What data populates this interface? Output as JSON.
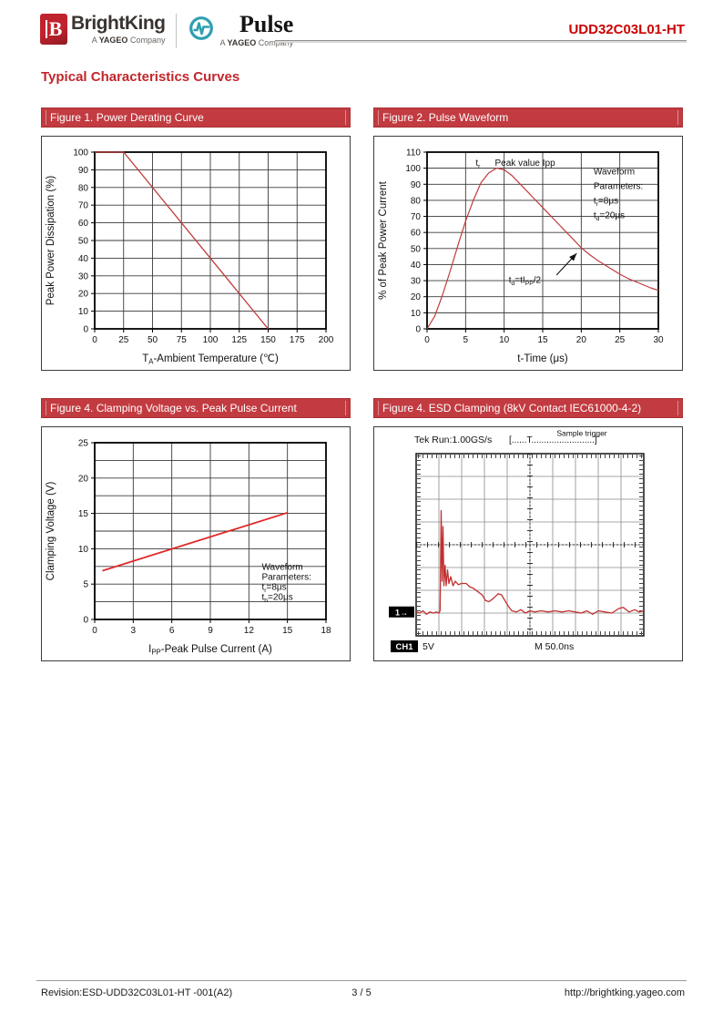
{
  "header": {
    "brightking": {
      "name": "BrightKing",
      "logo_letter": "B",
      "tagline": {
        "prefix": "A",
        "bold": "YAGEO",
        "suffix": "Company"
      }
    },
    "pulse": {
      "name": "Pulse",
      "tagline": {
        "prefix": "A",
        "bold": "YAGEO",
        "suffix": "Company"
      }
    },
    "part_number": "UDD32C03L01-HT"
  },
  "title": "Typical Characteristics Curves",
  "footer": {
    "revision": "Revision:ESD-UDD32C03L01-HT -001(A2)",
    "page_indicator": "3 / 5",
    "url": "http://brightking.yageo.com"
  },
  "colors": {
    "accent_red": "#c2262c",
    "figure_header_red": "#c23b41",
    "curve_red": "#c03a3a",
    "bright_curve_red": "#e02727",
    "part_number_red": "#cc0000",
    "pulse_teal": "#2d9fb0",
    "logo_red": "#b2212b"
  },
  "chart_data": [
    {
      "id": "figure-1",
      "type": "line",
      "title": "Figure 1. Power Derating Curve",
      "xlabel": "T~A~-Ambient Temperature (℃)",
      "ylabel": "Peak Power Dissipation (%)",
      "xlim": [
        0,
        200
      ],
      "ylim": [
        0,
        100
      ],
      "xticks": [
        0,
        25,
        50,
        75,
        100,
        125,
        150,
        175,
        200
      ],
      "yticks": [
        0,
        10,
        20,
        30,
        40,
        50,
        60,
        70,
        80,
        90,
        100
      ],
      "grid": true,
      "series": [
        {
          "name": "power-derating",
          "color": "#c03a3a",
          "width": 1.3,
          "points": [
            [
              0,
              100
            ],
            [
              25,
              100
            ],
            [
              150,
              0
            ]
          ]
        }
      ],
      "annotations": [],
      "arrows": []
    },
    {
      "id": "figure-2",
      "type": "line",
      "title": "Figure 2. Pulse Waveform",
      "xlabel": "t-Time (μs)",
      "ylabel": "% of Peak Power Current",
      "xlim": [
        0,
        30
      ],
      "ylim": [
        0,
        110
      ],
      "xticks": [
        0,
        5,
        10,
        15,
        20,
        25,
        30
      ],
      "yticks": [
        0,
        10,
        20,
        30,
        40,
        50,
        60,
        70,
        80,
        90,
        100,
        110
      ],
      "grid": true,
      "series": [
        {
          "name": "pulse-waveform",
          "color": "#c03a3a",
          "width": 1.2,
          "points": [
            [
              0,
              0
            ],
            [
              1,
              8
            ],
            [
              2,
              21
            ],
            [
              3,
              36
            ],
            [
              4,
              52
            ],
            [
              5,
              67
            ],
            [
              6,
              80
            ],
            [
              7,
              91
            ],
            [
              8,
              97
            ],
            [
              9,
              100
            ],
            [
              10,
              99
            ],
            [
              11,
              95.5
            ],
            [
              12,
              90.5
            ],
            [
              13,
              85.5
            ],
            [
              14,
              80.5
            ],
            [
              15,
              75.5
            ],
            [
              16,
              70.5
            ],
            [
              17,
              65.5
            ],
            [
              18,
              60.5
            ],
            [
              19,
              55.5
            ],
            [
              20,
              50.5
            ],
            [
              21,
              46.5
            ],
            [
              22,
              43
            ],
            [
              23,
              40
            ],
            [
              24,
              37
            ],
            [
              25,
              34
            ],
            [
              26,
              31.5
            ],
            [
              27,
              29.5
            ],
            [
              28,
              27.5
            ],
            [
              29,
              25.5
            ],
            [
              30,
              24
            ]
          ]
        }
      ],
      "annotations": [
        {
          "x": 6.6,
          "y": 101.5,
          "text": "t~r~",
          "anchor": "middle"
        },
        {
          "x": 8.8,
          "y": 101.5,
          "text": "Peak value Ipp",
          "anchor": "start"
        },
        {
          "x": 21.6,
          "y": 96,
          "text": "Waveform",
          "anchor": "start"
        },
        {
          "x": 21.6,
          "y": 87,
          "text": "Parameters:",
          "anchor": "start"
        },
        {
          "x": 21.6,
          "y": 78,
          "text": "t~r~=8μs",
          "anchor": "start"
        },
        {
          "x": 21.6,
          "y": 69,
          "text": "t~d~=20μs",
          "anchor": "start"
        },
        {
          "x": 10.6,
          "y": 28.5,
          "text": "t~d~=tI~PP~/2",
          "anchor": "start"
        }
      ],
      "arrows": [
        {
          "x1": 16.8,
          "y1": 33.5,
          "x2": 19.4,
          "y2": 47
        }
      ]
    },
    {
      "id": "figure-3",
      "type": "line",
      "title": "Figure 4. Clamping Voltage vs. Peak Pulse Current",
      "xlabel": "I~PP~-Peak Pulse Current (A)",
      "ylabel": "Clamping Voltage (V)",
      "xlim": [
        0,
        18
      ],
      "ylim": [
        0,
        25
      ],
      "xticks": [
        0,
        3,
        6,
        9,
        12,
        15,
        18
      ],
      "yticks": [
        0,
        5,
        10,
        15,
        20,
        25
      ],
      "ygrid": [
        0,
        2.5,
        5,
        7.5,
        10,
        12.5,
        15,
        17.5,
        20,
        22.5,
        25
      ],
      "grid": true,
      "series": [
        {
          "name": "clamping-voltage",
          "color": "#e02727",
          "width": 1.8,
          "points": [
            [
              0.6,
              6.9
            ],
            [
              15,
              15.1
            ]
          ]
        }
      ],
      "annotations": [
        {
          "x": 13,
          "y": 7.0,
          "text": "Waveform",
          "anchor": "start"
        },
        {
          "x": 13,
          "y": 5.6,
          "text": "Parameters:",
          "anchor": "start"
        },
        {
          "x": 13,
          "y": 4.2,
          "text": "t~r~=8μs",
          "anchor": "start"
        },
        {
          "x": 13,
          "y": 2.8,
          "text": "t~b~=20μs",
          "anchor": "start"
        }
      ],
      "arrows": []
    },
    {
      "id": "figure-4",
      "type": "scope",
      "title": "Figure 4. ESD Clamping (8kV Contact IEC61000-4-2)",
      "run_label": "Tek Run:1.00GS/s",
      "trigger_bar": "[......T.........................]",
      "trigger_label": "Sample trigger",
      "marker_label": "1→",
      "channel_label": "CH1",
      "channel_scale": "5V",
      "timebase": "M 50.0ns",
      "divisions_x": 10,
      "divisions_y": 8,
      "baseline_div": 1.05,
      "trace_color": "#c13030",
      "trace_points": [
        [
          0,
          1.05
        ],
        [
          0.15,
          1.0
        ],
        [
          0.3,
          1.1
        ],
        [
          0.45,
          0.95
        ],
        [
          0.6,
          1.05
        ],
        [
          0.75,
          1.0
        ],
        [
          0.9,
          1.05
        ],
        [
          1.0,
          1.0
        ],
        [
          1.05,
          1.1
        ],
        [
          1.1,
          5.5
        ],
        [
          1.14,
          2.4
        ],
        [
          1.18,
          4.8
        ],
        [
          1.22,
          2.2
        ],
        [
          1.27,
          3.1
        ],
        [
          1.32,
          2.2
        ],
        [
          1.38,
          2.9
        ],
        [
          1.44,
          2.3
        ],
        [
          1.52,
          2.6
        ],
        [
          1.62,
          2.2
        ],
        [
          1.72,
          2.4
        ],
        [
          1.85,
          2.25
        ],
        [
          2.0,
          2.3
        ],
        [
          2.2,
          2.3
        ],
        [
          2.35,
          2.15
        ],
        [
          2.5,
          2.1
        ],
        [
          2.7,
          1.95
        ],
        [
          2.9,
          1.8
        ],
        [
          3.05,
          1.55
        ],
        [
          3.2,
          1.5
        ],
        [
          3.4,
          1.65
        ],
        [
          3.6,
          1.85
        ],
        [
          3.75,
          1.8
        ],
        [
          3.9,
          1.55
        ],
        [
          4.05,
          1.3
        ],
        [
          4.2,
          1.1
        ],
        [
          4.4,
          1.05
        ],
        [
          4.6,
          1.15
        ],
        [
          4.8,
          1.0
        ],
        [
          5.0,
          1.1
        ],
        [
          5.2,
          1.05
        ],
        [
          5.5,
          1.1
        ],
        [
          5.8,
          1.05
        ],
        [
          6.1,
          1.1
        ],
        [
          6.4,
          1.05
        ],
        [
          6.7,
          1.1
        ],
        [
          7.0,
          1.05
        ],
        [
          7.25,
          1.0
        ],
        [
          7.5,
          1.1
        ],
        [
          7.75,
          0.95
        ],
        [
          8.0,
          1.1
        ],
        [
          8.3,
          1.05
        ],
        [
          8.6,
          1.0
        ],
        [
          8.9,
          1.2
        ],
        [
          9.1,
          1.25
        ],
        [
          9.35,
          1.05
        ],
        [
          9.6,
          1.15
        ],
        [
          9.8,
          1.05
        ],
        [
          10,
          1.1
        ]
      ]
    }
  ]
}
